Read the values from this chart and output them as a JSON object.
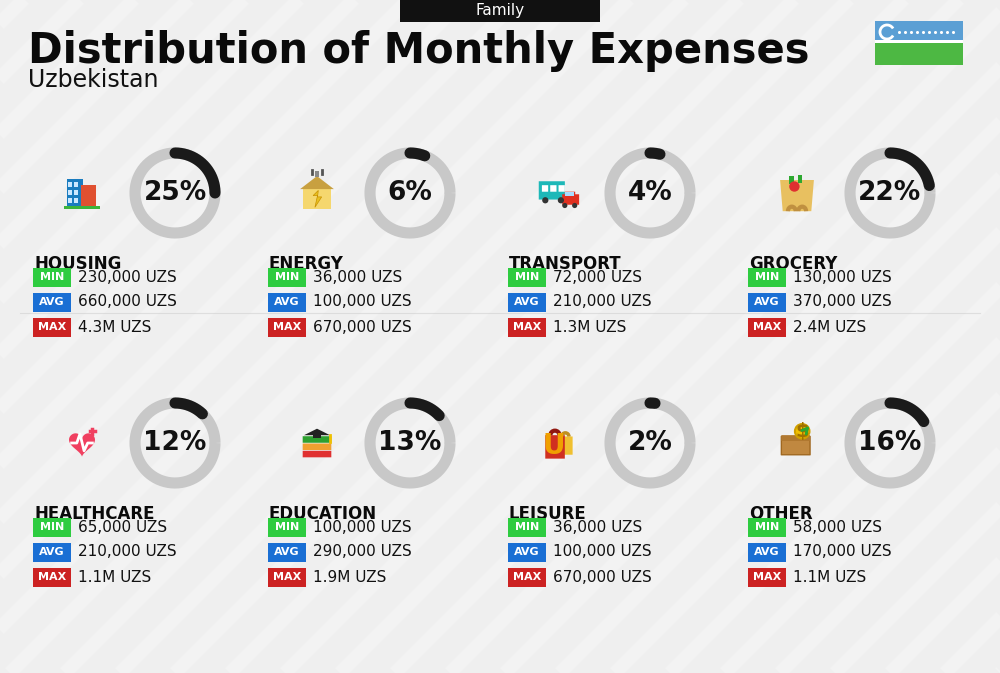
{
  "title": "Distribution of Monthly Expenses",
  "subtitle": "Uzbekistan",
  "category_label": "Family",
  "bg_color": "#efefef",
  "categories": [
    {
      "name": "HOUSING",
      "pct": 25,
      "min": "230,000 UZS",
      "avg": "660,000 UZS",
      "max": "4.3M UZS",
      "col": 0,
      "row": 0
    },
    {
      "name": "ENERGY",
      "pct": 6,
      "min": "36,000 UZS",
      "avg": "100,000 UZS",
      "max": "670,000 UZS",
      "col": 1,
      "row": 0
    },
    {
      "name": "TRANSPORT",
      "pct": 4,
      "min": "72,000 UZS",
      "avg": "210,000 UZS",
      "max": "1.3M UZS",
      "col": 2,
      "row": 0
    },
    {
      "name": "GROCERY",
      "pct": 22,
      "min": "130,000 UZS",
      "avg": "370,000 UZS",
      "max": "2.4M UZS",
      "col": 3,
      "row": 0
    },
    {
      "name": "HEALTHCARE",
      "pct": 12,
      "min": "65,000 UZS",
      "avg": "210,000 UZS",
      "max": "1.1M UZS",
      "col": 0,
      "row": 1
    },
    {
      "name": "EDUCATION",
      "pct": 13,
      "min": "100,000 UZS",
      "avg": "290,000 UZS",
      "max": "1.9M UZS",
      "col": 1,
      "row": 1
    },
    {
      "name": "LEISURE",
      "pct": 2,
      "min": "36,000 UZS",
      "avg": "100,000 UZS",
      "max": "670,000 UZS",
      "col": 2,
      "row": 1
    },
    {
      "name": "OTHER",
      "pct": 16,
      "min": "58,000 UZS",
      "avg": "170,000 UZS",
      "max": "1.1M UZS",
      "col": 3,
      "row": 1
    }
  ],
  "min_color": "#2ecc40",
  "avg_color": "#1a6fd4",
  "max_color": "#cc2222",
  "ring_filled_color": "#1a1a1a",
  "ring_empty_color": "#c8c8c8",
  "title_fontsize": 30,
  "subtitle_fontsize": 17,
  "name_fontsize": 12,
  "pct_fontsize": 19,
  "value_fontsize": 11,
  "badge_fontsize": 8,
  "flag_blue": "#5b9fd4",
  "flag_green": "#4db843",
  "flag_red": "#e8342a",
  "flag_white": "#ffffff"
}
